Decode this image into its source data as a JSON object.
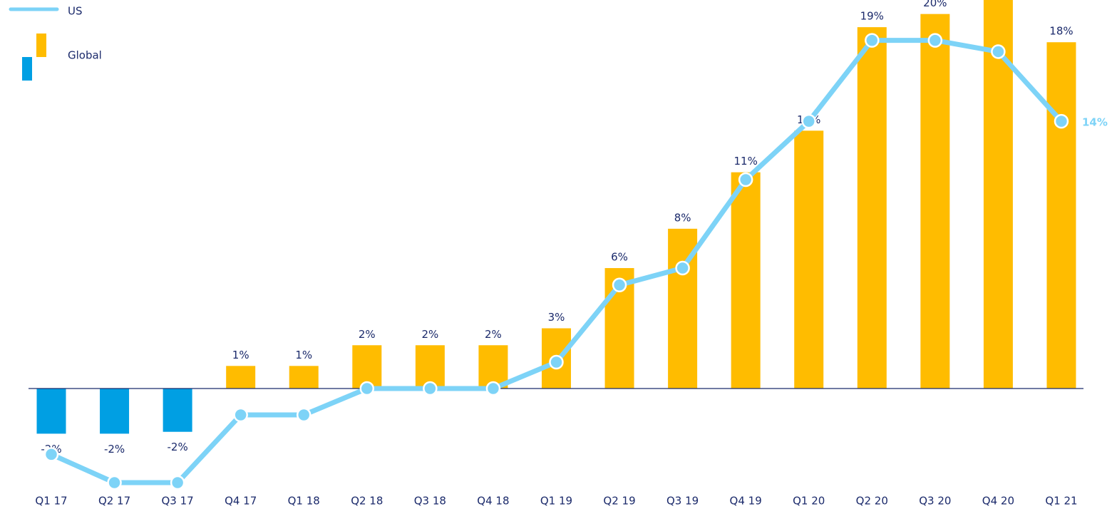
{
  "chart_data": {
    "type": "bar",
    "categories": [
      "Q1 17",
      "Q2 17",
      "Q3 17",
      "Q4 17",
      "Q1 18",
      "Q2 18",
      "Q3 18",
      "Q4 18",
      "Q1 19",
      "Q2 19",
      "Q3 19",
      "Q4 19",
      "Q1 20",
      "Q2 20",
      "Q3 20",
      "Q4 20",
      "Q1 21"
    ],
    "ylim": [
      -5.5,
      20.6
    ],
    "series": [
      {
        "name": "Global",
        "type": "bar",
        "color": "#FFBC00",
        "negative_color": "#009FE3",
        "values": [
          -2.4,
          -2.4,
          -2.3,
          1.2,
          1.2,
          2.3,
          2.3,
          2.3,
          3.2,
          6.4,
          8.49,
          11.49,
          13.7,
          19.2,
          19.9,
          21.5,
          18.4
        ],
        "value_labels": [
          "-2%",
          "-2%",
          "-2%",
          "1%",
          "1%",
          "2%",
          "2%",
          "2%",
          "3%",
          "6%",
          "8%",
          "11%",
          "14%",
          "19%",
          "20%",
          null,
          "18%"
        ]
      },
      {
        "name": "US",
        "type": "line",
        "color": "#7DD3F7",
        "values": [
          -3.5,
          -5.0,
          -5.0,
          -1.4,
          -1.4,
          0,
          0,
          0,
          1.4,
          5.5,
          6.4,
          11.1,
          14.2,
          18.5,
          18.5,
          17.9,
          14.2
        ],
        "end_label": "14%"
      }
    ]
  }
}
